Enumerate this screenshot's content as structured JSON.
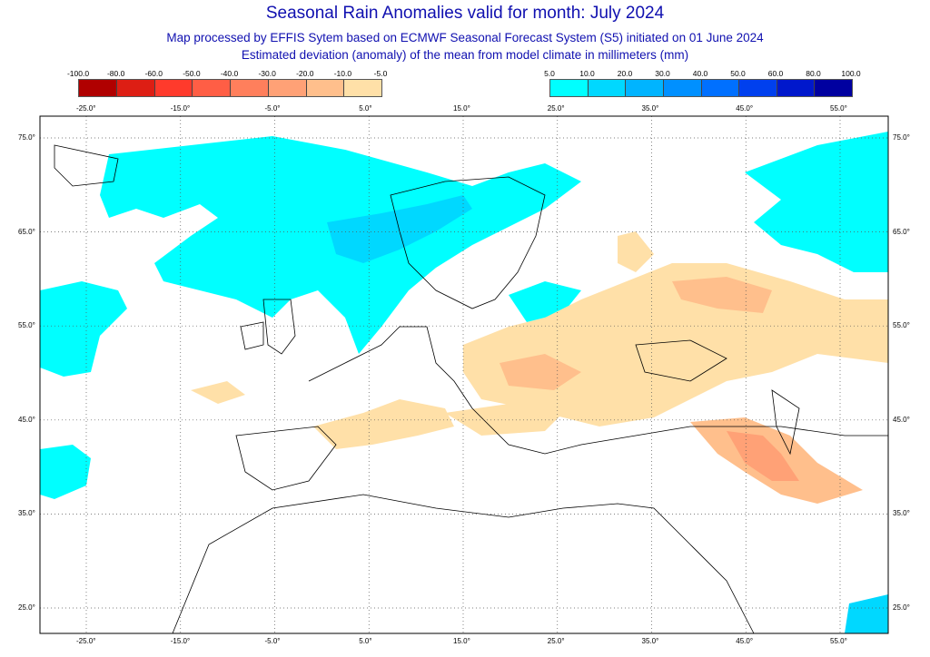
{
  "title": "Seasonal Rain Anomalies valid for month: July 2024",
  "subtitle1": "Map processed by EFFIS Sytem based on ECMWF Seasonal Forecast System (S5) initiated on 01 June 2024",
  "subtitle2": "Estimated deviation (anomaly) of the mean from model climate in millimeters (mm)",
  "legend_dry": {
    "labels": [
      "-100.0",
      "-80.0",
      "-60.0",
      "-50.0",
      "-40.0",
      "-30.0",
      "-20.0",
      "-10.0",
      "-5.0"
    ],
    "colors": [
      "#b00000",
      "#dd1e14",
      "#ff3a2c",
      "#ff5e45",
      "#ff7f5c",
      "#ffa176",
      "#ffbf8c",
      "#ffe0a8"
    ]
  },
  "legend_wet": {
    "labels": [
      "5.0",
      "10.0",
      "20.0",
      "30.0",
      "40.0",
      "50.0",
      "60.0",
      "80.0",
      "100.0"
    ],
    "colors": [
      "#00ffff",
      "#00d8ff",
      "#00b4ff",
      "#0090ff",
      "#0070ff",
      "#0040ee",
      "#0018cc",
      "#0000a0"
    ]
  },
  "map": {
    "lon_labels": [
      "-25.0°",
      "-15.0°",
      "-5.0°",
      "5.0°",
      "15.0°",
      "25.0°",
      "35.0°",
      "45.0°",
      "55.0°"
    ],
    "lat_labels": [
      "75.0°",
      "65.0°",
      "55.0°",
      "45.0°",
      "35.0°",
      "25.0°"
    ]
  }
}
